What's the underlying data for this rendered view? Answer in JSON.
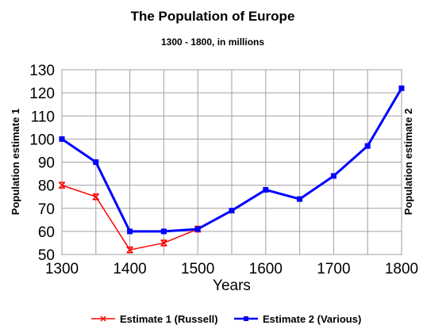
{
  "chart_data": {
    "type": "line",
    "title": "The Population of Europe",
    "subtitle": "1300 - 1800, in millions",
    "xlabel": "Years",
    "ylabel": "Population estimate 1",
    "ylabel_right": "Population estimate 2",
    "xlim": [
      1300,
      1800
    ],
    "ylim": [
      50,
      130
    ],
    "x_ticks": [
      1300,
      1400,
      1500,
      1600,
      1700,
      1800
    ],
    "y_ticks": [
      50,
      60,
      70,
      80,
      90,
      100,
      110,
      120,
      130
    ],
    "grid": true,
    "legend_position": "bottom",
    "series": [
      {
        "name": "Estimate 1 (Russell)",
        "color": "#ff0000",
        "marker": "x",
        "x": [
          1300,
          1350,
          1400,
          1450,
          1500
        ],
        "y": [
          80,
          75,
          52,
          55,
          61
        ]
      },
      {
        "name": "Estimate 2 (Various)",
        "color": "#0000ff",
        "marker": "square",
        "x": [
          1300,
          1350,
          1400,
          1450,
          1500,
          1550,
          1600,
          1650,
          1700,
          1750,
          1800
        ],
        "y": [
          100,
          90,
          60,
          60,
          61,
          69,
          78,
          74,
          84,
          97,
          122
        ]
      }
    ]
  }
}
